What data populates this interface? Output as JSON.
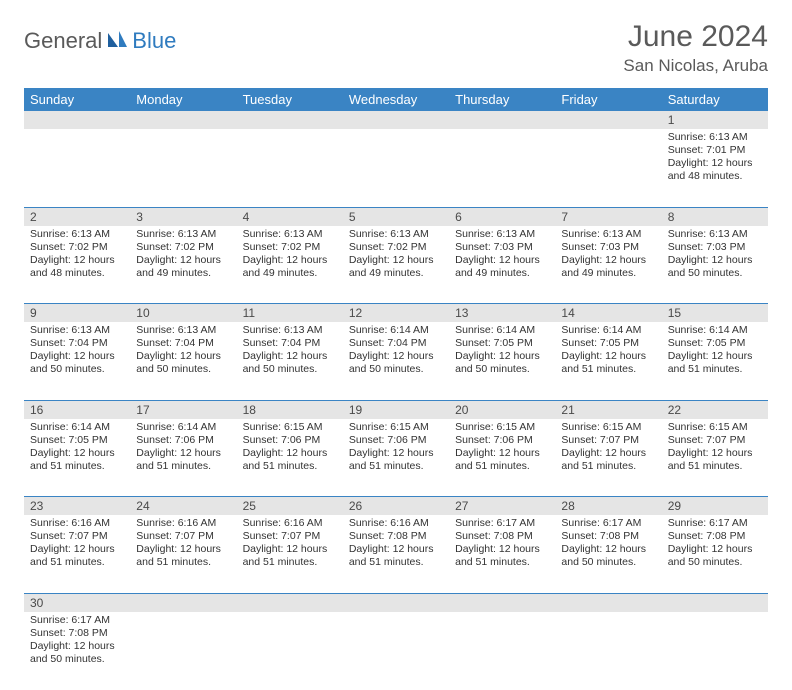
{
  "logo": {
    "part1": "General",
    "part2": "Blue"
  },
  "header": {
    "title": "June 2024",
    "location": "San Nicolas, Aruba"
  },
  "colors": {
    "headerBg": "#3a84c4",
    "daynumBg": "#e5e5e5",
    "text": "#333333",
    "logoBlue": "#2f7bbf",
    "logoGray": "#5a5a5a"
  },
  "dayNames": [
    "Sunday",
    "Monday",
    "Tuesday",
    "Wednesday",
    "Thursday",
    "Friday",
    "Saturday"
  ],
  "weeks": [
    {
      "nums": [
        "",
        "",
        "",
        "",
        "",
        "",
        "1"
      ],
      "cells": [
        null,
        null,
        null,
        null,
        null,
        null,
        {
          "sr": "Sunrise: 6:13 AM",
          "ss": "Sunset: 7:01 PM",
          "d1": "Daylight: 12 hours",
          "d2": "and 48 minutes."
        }
      ]
    },
    {
      "nums": [
        "2",
        "3",
        "4",
        "5",
        "6",
        "7",
        "8"
      ],
      "cells": [
        {
          "sr": "Sunrise: 6:13 AM",
          "ss": "Sunset: 7:02 PM",
          "d1": "Daylight: 12 hours",
          "d2": "and 48 minutes."
        },
        {
          "sr": "Sunrise: 6:13 AM",
          "ss": "Sunset: 7:02 PM",
          "d1": "Daylight: 12 hours",
          "d2": "and 49 minutes."
        },
        {
          "sr": "Sunrise: 6:13 AM",
          "ss": "Sunset: 7:02 PM",
          "d1": "Daylight: 12 hours",
          "d2": "and 49 minutes."
        },
        {
          "sr": "Sunrise: 6:13 AM",
          "ss": "Sunset: 7:02 PM",
          "d1": "Daylight: 12 hours",
          "d2": "and 49 minutes."
        },
        {
          "sr": "Sunrise: 6:13 AM",
          "ss": "Sunset: 7:03 PM",
          "d1": "Daylight: 12 hours",
          "d2": "and 49 minutes."
        },
        {
          "sr": "Sunrise: 6:13 AM",
          "ss": "Sunset: 7:03 PM",
          "d1": "Daylight: 12 hours",
          "d2": "and 49 minutes."
        },
        {
          "sr": "Sunrise: 6:13 AM",
          "ss": "Sunset: 7:03 PM",
          "d1": "Daylight: 12 hours",
          "d2": "and 50 minutes."
        }
      ]
    },
    {
      "nums": [
        "9",
        "10",
        "11",
        "12",
        "13",
        "14",
        "15"
      ],
      "cells": [
        {
          "sr": "Sunrise: 6:13 AM",
          "ss": "Sunset: 7:04 PM",
          "d1": "Daylight: 12 hours",
          "d2": "and 50 minutes."
        },
        {
          "sr": "Sunrise: 6:13 AM",
          "ss": "Sunset: 7:04 PM",
          "d1": "Daylight: 12 hours",
          "d2": "and 50 minutes."
        },
        {
          "sr": "Sunrise: 6:13 AM",
          "ss": "Sunset: 7:04 PM",
          "d1": "Daylight: 12 hours",
          "d2": "and 50 minutes."
        },
        {
          "sr": "Sunrise: 6:14 AM",
          "ss": "Sunset: 7:04 PM",
          "d1": "Daylight: 12 hours",
          "d2": "and 50 minutes."
        },
        {
          "sr": "Sunrise: 6:14 AM",
          "ss": "Sunset: 7:05 PM",
          "d1": "Daylight: 12 hours",
          "d2": "and 50 minutes."
        },
        {
          "sr": "Sunrise: 6:14 AM",
          "ss": "Sunset: 7:05 PM",
          "d1": "Daylight: 12 hours",
          "d2": "and 51 minutes."
        },
        {
          "sr": "Sunrise: 6:14 AM",
          "ss": "Sunset: 7:05 PM",
          "d1": "Daylight: 12 hours",
          "d2": "and 51 minutes."
        }
      ]
    },
    {
      "nums": [
        "16",
        "17",
        "18",
        "19",
        "20",
        "21",
        "22"
      ],
      "cells": [
        {
          "sr": "Sunrise: 6:14 AM",
          "ss": "Sunset: 7:05 PM",
          "d1": "Daylight: 12 hours",
          "d2": "and 51 minutes."
        },
        {
          "sr": "Sunrise: 6:14 AM",
          "ss": "Sunset: 7:06 PM",
          "d1": "Daylight: 12 hours",
          "d2": "and 51 minutes."
        },
        {
          "sr": "Sunrise: 6:15 AM",
          "ss": "Sunset: 7:06 PM",
          "d1": "Daylight: 12 hours",
          "d2": "and 51 minutes."
        },
        {
          "sr": "Sunrise: 6:15 AM",
          "ss": "Sunset: 7:06 PM",
          "d1": "Daylight: 12 hours",
          "d2": "and 51 minutes."
        },
        {
          "sr": "Sunrise: 6:15 AM",
          "ss": "Sunset: 7:06 PM",
          "d1": "Daylight: 12 hours",
          "d2": "and 51 minutes."
        },
        {
          "sr": "Sunrise: 6:15 AM",
          "ss": "Sunset: 7:07 PM",
          "d1": "Daylight: 12 hours",
          "d2": "and 51 minutes."
        },
        {
          "sr": "Sunrise: 6:15 AM",
          "ss": "Sunset: 7:07 PM",
          "d1": "Daylight: 12 hours",
          "d2": "and 51 minutes."
        }
      ]
    },
    {
      "nums": [
        "23",
        "24",
        "25",
        "26",
        "27",
        "28",
        "29"
      ],
      "cells": [
        {
          "sr": "Sunrise: 6:16 AM",
          "ss": "Sunset: 7:07 PM",
          "d1": "Daylight: 12 hours",
          "d2": "and 51 minutes."
        },
        {
          "sr": "Sunrise: 6:16 AM",
          "ss": "Sunset: 7:07 PM",
          "d1": "Daylight: 12 hours",
          "d2": "and 51 minutes."
        },
        {
          "sr": "Sunrise: 6:16 AM",
          "ss": "Sunset: 7:07 PM",
          "d1": "Daylight: 12 hours",
          "d2": "and 51 minutes."
        },
        {
          "sr": "Sunrise: 6:16 AM",
          "ss": "Sunset: 7:08 PM",
          "d1": "Daylight: 12 hours",
          "d2": "and 51 minutes."
        },
        {
          "sr": "Sunrise: 6:17 AM",
          "ss": "Sunset: 7:08 PM",
          "d1": "Daylight: 12 hours",
          "d2": "and 51 minutes."
        },
        {
          "sr": "Sunrise: 6:17 AM",
          "ss": "Sunset: 7:08 PM",
          "d1": "Daylight: 12 hours",
          "d2": "and 50 minutes."
        },
        {
          "sr": "Sunrise: 6:17 AM",
          "ss": "Sunset: 7:08 PM",
          "d1": "Daylight: 12 hours",
          "d2": "and 50 minutes."
        }
      ]
    },
    {
      "nums": [
        "30",
        "",
        "",
        "",
        "",
        "",
        ""
      ],
      "cells": [
        {
          "sr": "Sunrise: 6:17 AM",
          "ss": "Sunset: 7:08 PM",
          "d1": "Daylight: 12 hours",
          "d2": "and 50 minutes."
        },
        null,
        null,
        null,
        null,
        null,
        null
      ]
    }
  ]
}
